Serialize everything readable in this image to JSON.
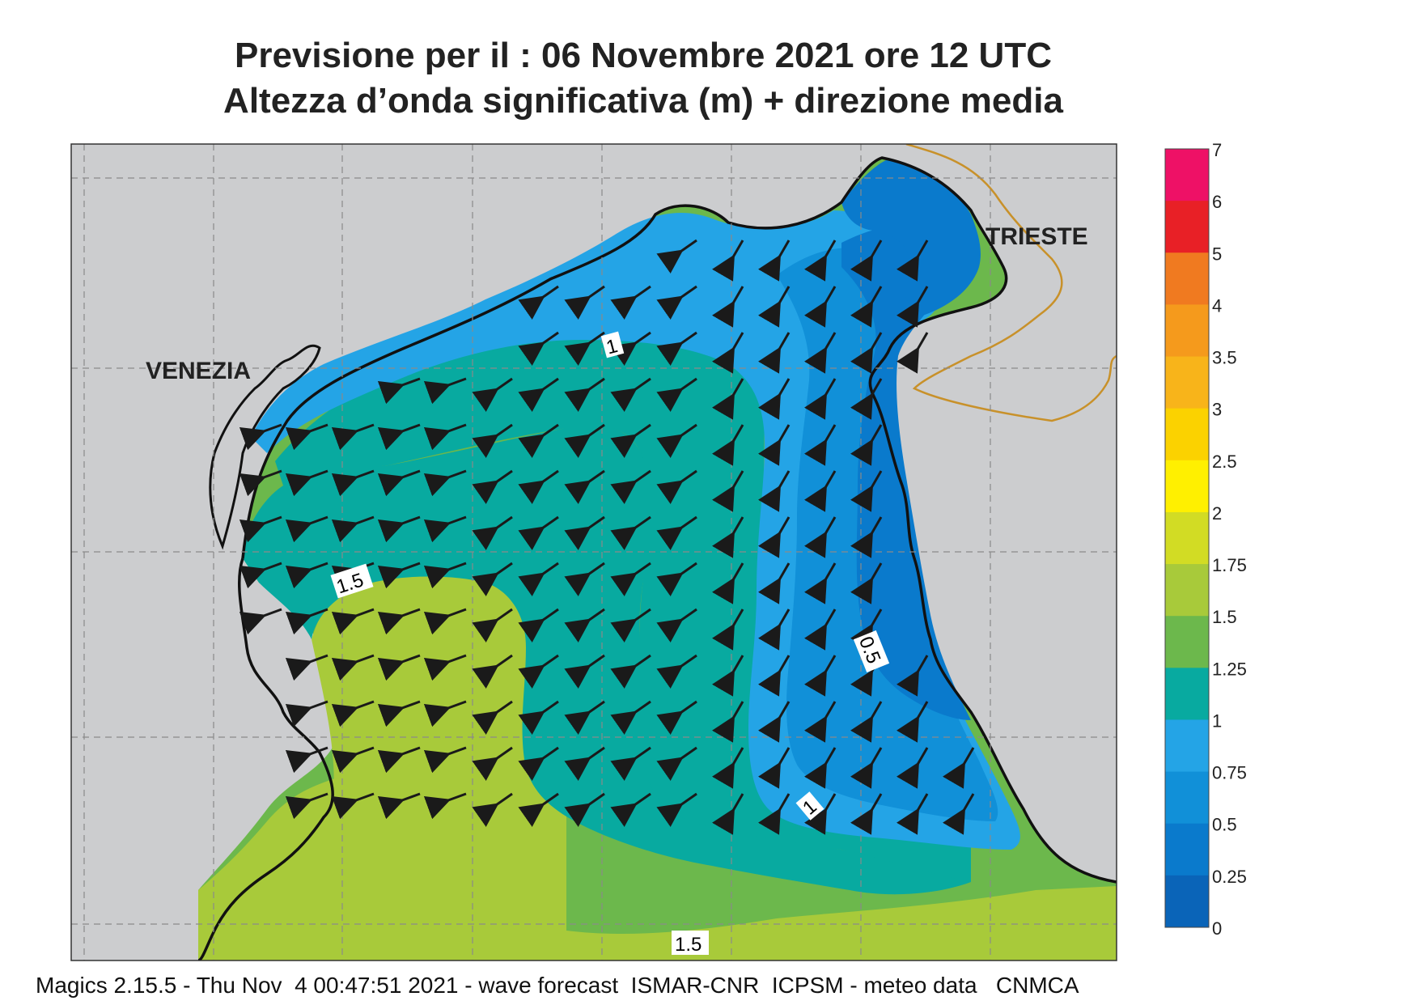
{
  "title": {
    "line1": "Previsione per il  :  06 Novembre  2021   ore 12 UTC",
    "line2": "Altezza d’onda significativa (m) + direzione media"
  },
  "labels": {
    "venezia": "VENEZIA",
    "trieste": "TRIESTE",
    "contour_1_top": "1",
    "contour_1_5_left": "1.5",
    "contour_0_5": "0.5",
    "contour_1_bottom": "1",
    "contour_1_5_bottom": "1.5"
  },
  "legend": {
    "ticks": [
      "7",
      "6",
      "5",
      "4",
      "3.5",
      "3",
      "2.5",
      "2",
      "1.75",
      "1.5",
      "1.25",
      "1",
      "0.75",
      "0.5",
      "0.25",
      "0"
    ],
    "colors": [
      "#ee1166",
      "#e82026",
      "#f07a20",
      "#f59a1c",
      "#f8b41a",
      "#fbd200",
      "#fff000",
      "#d2dc24",
      "#a8ca3a",
      "#6cb84c",
      "#08aaa0",
      "#24a4e6",
      "#1190d8",
      "#0a7acc",
      "#0a64b8"
    ]
  },
  "colors": {
    "land": "#cccdcf",
    "arrows": "#1a1a1a",
    "border": "#c8912a"
  },
  "footer": "Magics 2.15.5 - Thu Nov  4 00:47:51 2021 - wave forecast  ISMAR-CNR  ICPSM - meteo data   CNMCA"
}
